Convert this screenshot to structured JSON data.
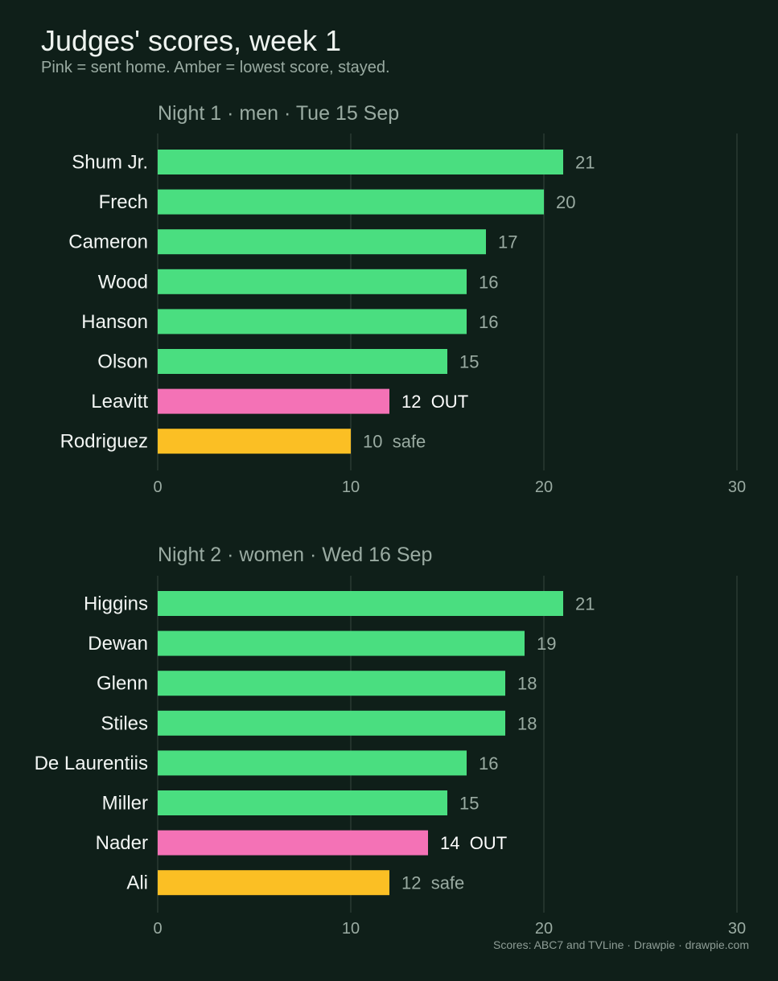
{
  "title": "Judges' scores, week 1",
  "subtitle": "Pink = sent home. Amber = lowest score, stayed.",
  "source": "Scores: ABC7 and TVLine  ·  Drawpie · drawpie.com",
  "colors": {
    "background": "#0f1f19",
    "default": "#4ade80",
    "out": "#f472b6",
    "safe": "#fbbf24",
    "grid": "#2a3a33",
    "label": "#f2f5f3",
    "muted": "#9aaba2",
    "out_label": "#ffffff"
  },
  "chart_data": [
    {
      "type": "bar",
      "orientation": "horizontal",
      "title": "Night 1 · men · Tue 15 Sep",
      "xlim": [
        0,
        30
      ],
      "xticks": [
        0,
        10,
        20,
        30
      ],
      "grid": "vertical",
      "categories": [
        "Shum Jr.",
        "Frech",
        "Cameron",
        "Wood",
        "Hanson",
        "Olson",
        "Leavitt",
        "Rodriguez"
      ],
      "values": [
        21,
        20,
        17,
        16,
        16,
        15,
        12,
        10
      ],
      "status": [
        "",
        "",
        "",
        "",
        "",
        "",
        "OUT",
        "safe"
      ]
    },
    {
      "type": "bar",
      "orientation": "horizontal",
      "title": "Night 2 · women · Wed 16 Sep",
      "xlim": [
        0,
        30
      ],
      "xticks": [
        0,
        10,
        20,
        30
      ],
      "grid": "vertical",
      "categories": [
        "Higgins",
        "Dewan",
        "Glenn",
        "Stiles",
        "De Laurentiis",
        "Miller",
        "Nader",
        "Ali"
      ],
      "values": [
        21,
        19,
        18,
        18,
        16,
        15,
        14,
        12
      ],
      "status": [
        "",
        "",
        "",
        "",
        "",
        "",
        "OUT",
        "safe"
      ]
    }
  ]
}
